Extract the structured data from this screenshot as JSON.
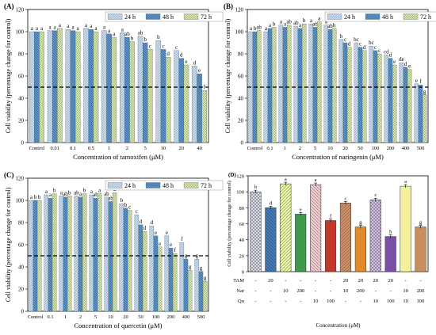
{
  "chart_data": [
    {
      "panel": "(A)",
      "type": "bar",
      "xlabel": "Concentration of tamoxifen (μM)",
      "ylabel": "Cell viability (percentage change for control)",
      "ylim": [
        0,
        120
      ],
      "yticks": [
        0,
        20,
        40,
        60,
        80,
        100,
        120
      ],
      "reference_line": 50,
      "legend": "top-right",
      "categories": [
        "Control",
        "0.01",
        "0.1",
        "0.5",
        "1",
        "2",
        "5",
        "10",
        "20",
        "40"
      ],
      "series": [
        {
          "name": "24 h",
          "values": [
            100,
            101,
            102,
            103,
            101,
            99,
            96,
            92,
            83,
            69
          ]
        },
        {
          "name": "48 h",
          "values": [
            100,
            101,
            101,
            102,
            98,
            95,
            90,
            84,
            76,
            62
          ]
        },
        {
          "name": "72 h",
          "values": [
            100,
            103,
            100,
            100,
            95,
            91,
            84,
            77,
            70,
            47
          ]
        }
      ],
      "annotations": [
        [
          "a",
          "a",
          "a"
        ],
        [
          "a",
          "a",
          "a"
        ],
        [
          "a",
          "a",
          "a"
        ],
        [
          "a",
          "a",
          "a"
        ],
        [
          "a",
          "a",
          "a"
        ],
        [
          "a",
          "ab",
          "b"
        ],
        [
          "ab",
          "b",
          "c"
        ],
        [
          "b",
          "c",
          "d"
        ],
        [
          "c",
          "d",
          "e"
        ],
        [
          "d",
          "e",
          "f"
        ]
      ]
    },
    {
      "panel": "(B)",
      "type": "bar",
      "xlabel": "Concentration of naringenin (μM)",
      "ylabel": "Cell viability (percentage change for control)",
      "ylim": [
        0,
        120
      ],
      "yticks": [
        0,
        20,
        40,
        60,
        80,
        100,
        120
      ],
      "reference_line": 50,
      "legend": "top-right",
      "categories": [
        "Control",
        "0.1",
        "1",
        "2",
        "5",
        "10",
        "20",
        "50",
        "100",
        "200",
        "400",
        "500"
      ],
      "series": [
        {
          "name": "24 h",
          "values": [
            100,
            100,
            106,
            105,
            107,
            106,
            93,
            90,
            87,
            79,
            72,
            53
          ]
        },
        {
          "name": "48 h",
          "values": [
            100,
            103,
            104,
            103,
            104,
            102,
            90,
            86,
            83,
            76,
            68,
            52
          ]
        },
        {
          "name": "72 h",
          "values": [
            101,
            104,
            106,
            107,
            109,
            103,
            86,
            83,
            80,
            70,
            66,
            43
          ]
        }
      ],
      "annotations": [
        [
          "a",
          "b",
          "ab"
        ],
        [
          "a",
          "a",
          "b"
        ],
        [
          "a",
          "a",
          "ab"
        ],
        [
          "ab",
          "a",
          "b"
        ],
        [
          "a",
          "ab",
          "a"
        ],
        [
          "a",
          "ab",
          "b"
        ],
        [
          "b",
          "c",
          "d"
        ],
        [
          "bc",
          "c",
          "d"
        ],
        [
          "bc",
          "c",
          "c"
        ],
        [
          "cd",
          "d",
          "e"
        ],
        [
          "de",
          "d",
          "e"
        ],
        [
          "e",
          "f",
          "g"
        ]
      ]
    },
    {
      "panel": "(C)",
      "type": "bar",
      "xlabel": "Concentration of quercetin (μM)",
      "ylabel": "Cell viability (percentage change for control)",
      "ylim": [
        0,
        120
      ],
      "yticks": [
        0,
        20,
        40,
        60,
        80,
        100,
        120
      ],
      "reference_line": 50,
      "legend": "top-right",
      "categories": [
        "Control",
        "0.1",
        "1",
        "2",
        "5",
        "10",
        "20",
        "50",
        "100",
        "200",
        "400",
        "500"
      ],
      "series": [
        {
          "name": "24 h",
          "values": [
            100,
            105,
            104,
            104,
            105,
            103,
            97,
            87,
            77,
            68,
            62,
            47
          ]
        },
        {
          "name": "48 h",
          "values": [
            100,
            102,
            103,
            103,
            102,
            99,
            93,
            78,
            68,
            57,
            47,
            36
          ]
        },
        {
          "name": "72 h",
          "values": [
            100,
            106,
            104,
            106,
            106,
            107,
            91,
            72,
            58,
            52,
            37,
            27
          ]
        }
      ],
      "annotations": [
        [
          "a",
          "b",
          "b"
        ],
        [
          "a",
          "a",
          "b"
        ],
        [
          "a",
          "ab",
          "b"
        ],
        [
          "ab",
          "a",
          "b"
        ],
        [
          "a",
          "ab",
          "a"
        ],
        [
          "ab",
          "ab",
          "a"
        ],
        [
          "b",
          "b",
          "c"
        ],
        [
          "c",
          "d",
          "d"
        ],
        [
          "d",
          "e",
          "e"
        ],
        [
          "e",
          "e",
          "f"
        ],
        [
          "f",
          "g",
          "g"
        ],
        [
          "g",
          "g",
          "g"
        ]
      ]
    },
    {
      "panel": "(D)",
      "type": "bar",
      "xlabel": "Concentration (μM)",
      "ylabel": "Cell viability (percentage change for control)",
      "ylim": [
        0,
        120
      ],
      "yticks": [
        0,
        20,
        40,
        60,
        80,
        100,
        120
      ],
      "treatment_rows": [
        "TAM",
        "Nar",
        "Qu"
      ],
      "columns": [
        {
          "TAM": "-",
          "Nar": "-",
          "Qu": "-",
          "value": 100,
          "error": 2,
          "letter": "b",
          "color": "#d9dde8",
          "hatch": "cross"
        },
        {
          "TAM": "20",
          "Nar": "-",
          "Qu": "-",
          "value": 80,
          "error": 2,
          "letter": "d",
          "color": "#3a7bbf",
          "hatch": "back"
        },
        {
          "TAM": "-",
          "Nar": "10",
          "Qu": "-",
          "value": 110,
          "error": 2,
          "letter": "a",
          "color": "#e8f2a8",
          "hatch": "fwd"
        },
        {
          "TAM": "-",
          "Nar": "200",
          "Qu": "-",
          "value": 72,
          "error": 2,
          "letter": "e",
          "color": "#3f9a4c",
          "hatch": "none"
        },
        {
          "TAM": "-",
          "Nar": "-",
          "Qu": "10",
          "value": 109,
          "error": 2,
          "letter": "a",
          "color": "#f2c9ce",
          "hatch": "back"
        },
        {
          "TAM": "-",
          "Nar": "-",
          "Qu": "100",
          "value": 64,
          "error": 2,
          "letter": "f",
          "color": "#c0392b",
          "hatch": "none"
        },
        {
          "TAM": "20",
          "Nar": "10",
          "Qu": "-",
          "value": 86,
          "error": 2,
          "letter": "c",
          "color": "#c9916a",
          "hatch": "fwd"
        },
        {
          "TAM": "20",
          "Nar": "200",
          "Qu": "-",
          "value": 56,
          "error": 2,
          "letter": "g",
          "color": "#e08a2a",
          "hatch": "none"
        },
        {
          "TAM": "20",
          "Nar": "-",
          "Qu": "10",
          "value": 90,
          "error": 2,
          "letter": "c",
          "color": "#d7c1e6",
          "hatch": "cross"
        },
        {
          "TAM": "20",
          "Nar": "-",
          "Qu": "100",
          "value": 44,
          "error": 2,
          "letter": "h",
          "color": "#7b4fa8",
          "hatch": "none"
        },
        {
          "TAM": "-",
          "Nar": "10",
          "Qu": "10",
          "value": 107,
          "error": 2,
          "letter": "a",
          "color": "#f4f19a",
          "hatch": "none"
        },
        {
          "TAM": "-",
          "Nar": "200",
          "Qu": "100",
          "value": 56,
          "error": 2,
          "letter": "g",
          "color": "#c98e5e",
          "hatch": "none"
        }
      ]
    }
  ],
  "series_colors": {
    "24 h": "#c8dcee",
    "48 h": "#5a93c8",
    "72 h": "#dfe9b8"
  }
}
